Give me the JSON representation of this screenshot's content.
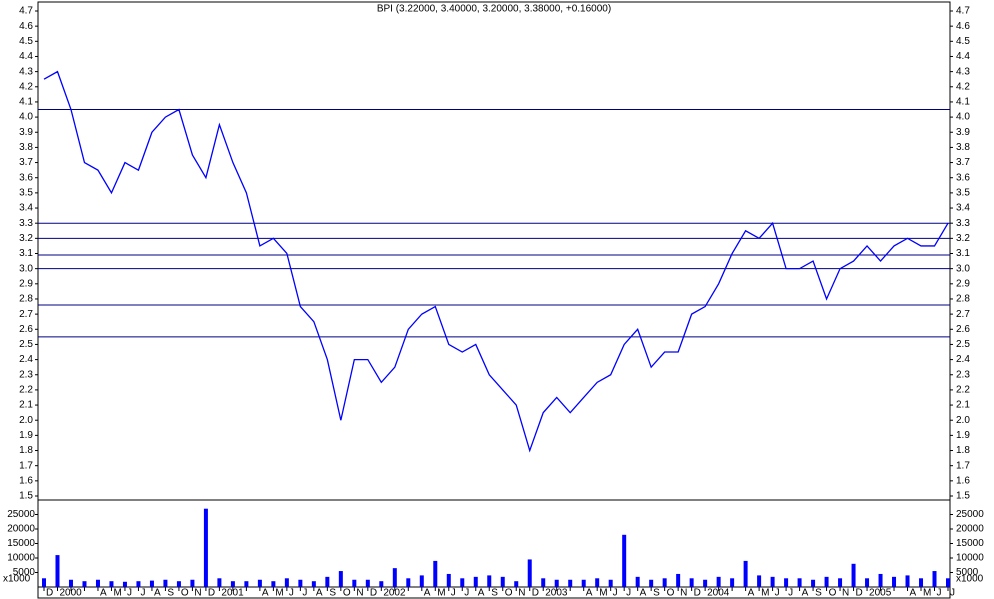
{
  "chart_data": {
    "type": "line",
    "title": "BPI (3.22000, 3.40000, 3.20000, 3.38000, +0.16000)",
    "categories": [
      "D",
      "2000",
      null,
      null,
      "A",
      "M",
      "J",
      "J",
      "A",
      "S",
      "O",
      "N",
      "D",
      "2001",
      null,
      null,
      "A",
      "M",
      "J",
      "J",
      "A",
      "S",
      "O",
      "N",
      "D",
      "2002",
      null,
      null,
      "A",
      "M",
      "J",
      "J",
      "A",
      "S",
      "O",
      "N",
      "D",
      "2003",
      null,
      null,
      "A",
      "M",
      "J",
      "J",
      "A",
      "S",
      "O",
      "N",
      "D",
      "2004",
      null,
      null,
      "A",
      "M",
      "J",
      "J",
      "A",
      "S",
      "O",
      "N",
      "D",
      "2005",
      null,
      null,
      "A",
      "M",
      "J",
      "J"
    ],
    "series": [
      {
        "color": "#0000ff",
        "values": [
          4.25,
          4.3,
          4.05,
          3.7,
          3.65,
          3.5,
          3.7,
          3.65,
          3.9,
          4.0,
          4.05,
          3.75,
          3.6,
          3.95,
          3.7,
          3.5,
          3.15,
          3.2,
          3.1,
          2.75,
          2.65,
          2.4,
          2.0,
          2.4,
          2.4,
          2.25,
          2.35,
          2.6,
          2.7,
          2.75,
          2.5,
          2.45,
          2.5,
          2.3,
          2.2,
          2.1,
          1.8,
          2.05,
          2.15,
          2.05,
          2.15,
          2.25,
          2.3,
          2.5,
          2.6,
          2.35,
          2.45,
          2.45,
          2.7,
          2.75,
          2.9,
          3.1,
          3.25,
          3.2,
          3.3,
          3.0,
          3.0,
          3.05,
          2.8,
          3.0,
          3.05,
          3.15,
          3.05,
          3.15,
          3.2,
          3.15,
          3.15,
          3.3
        ]
      }
    ],
    "ylim": [
      1.5,
      4.7
    ],
    "yticks": [
      1.5,
      1.6,
      1.7,
      1.8,
      1.9,
      {
        "value": 2,
        "label": "2.0"
      },
      2.1,
      2.2,
      2.3,
      2.4,
      2.5,
      2.6,
      2.7,
      2.8,
      2.9,
      {
        "value": 3,
        "label": "3.0"
      },
      3.1,
      3.2,
      3.3,
      3.4,
      3.5,
      3.6,
      3.7,
      3.8,
      3.9,
      {
        "value": 4,
        "label": "4.0"
      },
      4.1,
      4.2,
      4.3,
      4.4,
      4.5,
      4.6,
      4.7
    ],
    "levels": {
      "color": "#000080",
      "values": [
        4.05,
        3.3,
        3.2,
        3.09,
        3.0,
        2.76,
        2.55
      ]
    },
    "volume": {
      "color": "#0000ff",
      "unit_label": "x1000",
      "values": [
        3000,
        11000,
        2500,
        2000,
        2500,
        2000,
        1800,
        2000,
        2200,
        2500,
        2000,
        2500,
        27000,
        3000,
        2000,
        2000,
        2500,
        2000,
        3000,
        2500,
        2000,
        3500,
        5500,
        2500,
        2500,
        2000,
        6500,
        3000,
        4000,
        9000,
        4500,
        3000,
        3500,
        4000,
        3500,
        2000,
        9500,
        3000,
        2500,
        2500,
        2500,
        3000,
        2500,
        18000,
        3500,
        2500,
        3000,
        4500,
        3000,
        2500,
        3500,
        3000,
        9000,
        4000,
        3500,
        3000,
        3000,
        2500,
        3500,
        3000,
        8000,
        3000,
        4500,
        3500,
        4000,
        3000,
        5500,
        3000
      ],
      "ylim": [
        0,
        30000
      ],
      "yticks": [
        5000,
        10000,
        15000,
        20000,
        25000
      ]
    }
  }
}
